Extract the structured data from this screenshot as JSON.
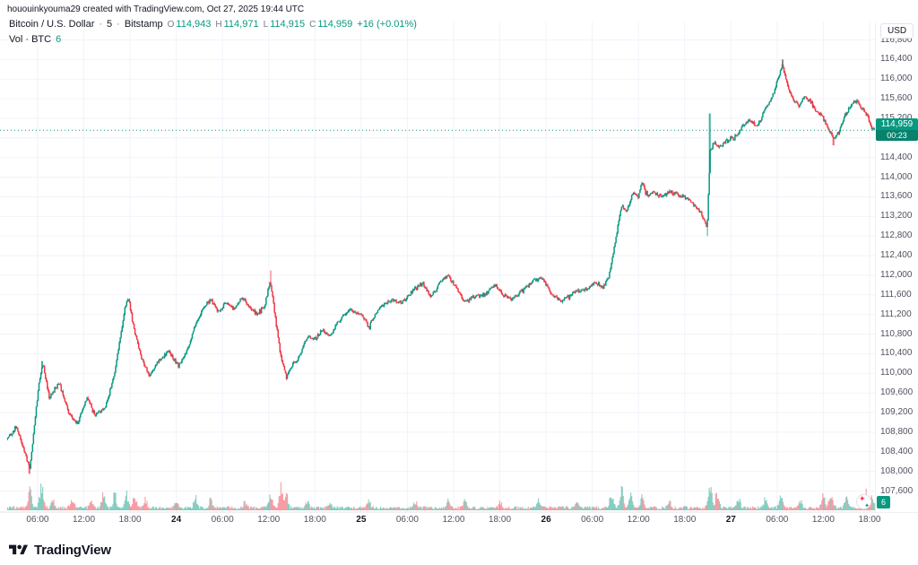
{
  "attribution": "hououinkyouma29 created with TradingView.com, Oct 27, 2025 19:44 UTC",
  "legend": {
    "symbol": "Bitcoin / U.S. Dollar",
    "separator": "·",
    "interval": "5",
    "exchange": "Bitstamp",
    "ohlc": [
      {
        "label": "O",
        "value": "114,943"
      },
      {
        "label": "H",
        "value": "114,971"
      },
      {
        "label": "L",
        "value": "114,915"
      },
      {
        "label": "C",
        "value": "114,959"
      }
    ],
    "change": "+16 (+0.01%)",
    "volume_label": "Vol · BTC",
    "volume_value": "6"
  },
  "price_axis": {
    "currency": "USD",
    "last_price": "114,959",
    "countdown": "00:23",
    "volume_badge": "6",
    "tick_values": [
      116800,
      116400,
      116000,
      115600,
      115200,
      114800,
      114400,
      114000,
      113600,
      113200,
      112800,
      112400,
      112000,
      111600,
      111200,
      110800,
      110400,
      110000,
      109600,
      109200,
      108800,
      108400,
      108000,
      107600
    ]
  },
  "time_axis": {
    "ticks": [
      {
        "h": 6,
        "label": "06:00",
        "day": false
      },
      {
        "h": 12,
        "label": "12:00",
        "day": false
      },
      {
        "h": 18,
        "label": "18:00",
        "day": false
      },
      {
        "h": 24,
        "label": "24",
        "day": true
      },
      {
        "h": 30,
        "label": "06:00",
        "day": false
      },
      {
        "h": 36,
        "label": "12:00",
        "day": false
      },
      {
        "h": 42,
        "label": "18:00",
        "day": false
      },
      {
        "h": 48,
        "label": "25",
        "day": true
      },
      {
        "h": 54,
        "label": "06:00",
        "day": false
      },
      {
        "h": 60,
        "label": "12:00",
        "day": false
      },
      {
        "h": 66,
        "label": "18:00",
        "day": false
      },
      {
        "h": 72,
        "label": "26",
        "day": true
      },
      {
        "h": 78,
        "label": "06:00",
        "day": false
      },
      {
        "h": 84,
        "label": "12:00",
        "day": false
      },
      {
        "h": 90,
        "label": "18:00",
        "day": false
      },
      {
        "h": 96,
        "label": "27",
        "day": true
      },
      {
        "h": 102,
        "label": "06:00",
        "day": false
      },
      {
        "h": 108,
        "label": "12:00",
        "day": false
      },
      {
        "h": 114,
        "label": "18:00",
        "day": false
      }
    ]
  },
  "footer": {
    "brand": "TradingView"
  },
  "colors": {
    "up": "#089981",
    "down": "#f23645",
    "grid": "#f0f3fa",
    "axis_border": "#e0e3eb",
    "axis_text": "#50535e",
    "text_dark": "#131722",
    "volume_up": "rgba(8,153,129,0.45)",
    "volume_down": "rgba(242,54,69,0.45)"
  },
  "chart_data": {
    "type": "candlestick",
    "title": "Bitcoin / U.S. Dollar · 5 · Bitstamp",
    "symbol": "BTCUSD",
    "exchange": "Bitstamp",
    "interval_minutes": 5,
    "ylabel": "USD",
    "grid": true,
    "ohlc_current": {
      "open": 114943,
      "high": 114971,
      "low": 114915,
      "close": 114959,
      "change": 16,
      "change_pct": 0.01
    },
    "volume_current_btc": 6,
    "price_range_axis": [
      107600,
      116800
    ],
    "hours_domain": [
      2.05,
      114.7
    ],
    "anchor_units": {
      "x": "hours since Oct 23 2025 00:00 UTC",
      "y": "USD"
    },
    "price_path_anchors": [
      [
        2.0,
        108650
      ],
      [
        3.3,
        108900
      ],
      [
        4.2,
        108450
      ],
      [
        5.0,
        108050
      ],
      [
        6.2,
        109850
      ],
      [
        6.7,
        110200
      ],
      [
        7.5,
        109500
      ],
      [
        8.8,
        109800
      ],
      [
        10.0,
        109200
      ],
      [
        11.2,
        108975
      ],
      [
        12.4,
        109500
      ],
      [
        13.5,
        109150
      ],
      [
        14.8,
        109300
      ],
      [
        16.0,
        110000
      ],
      [
        17.3,
        111300
      ],
      [
        17.8,
        111550
      ],
      [
        18.5,
        110900
      ],
      [
        19.5,
        110300
      ],
      [
        20.5,
        109950
      ],
      [
        21.5,
        110200
      ],
      [
        23.0,
        110450
      ],
      [
        24.3,
        110150
      ],
      [
        25.5,
        110500
      ],
      [
        26.5,
        111000
      ],
      [
        27.5,
        111350
      ],
      [
        28.5,
        111500
      ],
      [
        29.5,
        111250
      ],
      [
        30.5,
        111450
      ],
      [
        31.5,
        111300
      ],
      [
        32.5,
        111550
      ],
      [
        33.5,
        111350
      ],
      [
        34.5,
        111200
      ],
      [
        35.5,
        111400
      ],
      [
        36.2,
        111900
      ],
      [
        36.8,
        111200
      ],
      [
        37.5,
        110400
      ],
      [
        38.3,
        109950
      ],
      [
        39.0,
        110150
      ],
      [
        40.0,
        110350
      ],
      [
        41.0,
        110750
      ],
      [
        42.0,
        110700
      ],
      [
        43.0,
        110900
      ],
      [
        44.0,
        110750
      ],
      [
        45.0,
        111050
      ],
      [
        46.5,
        111300
      ],
      [
        48.0,
        111200
      ],
      [
        49.0,
        110950
      ],
      [
        50.5,
        111350
      ],
      [
        52.0,
        111500
      ],
      [
        53.5,
        111450
      ],
      [
        55.0,
        111750
      ],
      [
        56.0,
        111850
      ],
      [
        57.0,
        111550
      ],
      [
        58.5,
        111900
      ],
      [
        59.3,
        112000
      ],
      [
        60.5,
        111700
      ],
      [
        61.5,
        111450
      ],
      [
        62.5,
        111550
      ],
      [
        64.0,
        111600
      ],
      [
        65.5,
        111800
      ],
      [
        66.5,
        111600
      ],
      [
        67.5,
        111500
      ],
      [
        69.0,
        111700
      ],
      [
        70.5,
        111900
      ],
      [
        71.5,
        111950
      ],
      [
        72.5,
        111650
      ],
      [
        74.0,
        111450
      ],
      [
        75.5,
        111650
      ],
      [
        77.0,
        111700
      ],
      [
        78.5,
        111850
      ],
      [
        79.5,
        111750
      ],
      [
        80.2,
        112000
      ],
      [
        81.0,
        112700
      ],
      [
        81.8,
        113400
      ],
      [
        82.5,
        113300
      ],
      [
        83.3,
        113700
      ],
      [
        84.0,
        113600
      ],
      [
        84.5,
        113900
      ],
      [
        85.2,
        113600
      ],
      [
        86.0,
        113700
      ],
      [
        87.0,
        113600
      ],
      [
        88.0,
        113700
      ],
      [
        89.0,
        113650
      ],
      [
        90.0,
        113600
      ],
      [
        91.0,
        113450
      ],
      [
        92.0,
        113300
      ],
      [
        92.9,
        112950
      ],
      [
        93.3,
        114550
      ],
      [
        93.8,
        114700
      ],
      [
        94.5,
        114600
      ],
      [
        95.5,
        114750
      ],
      [
        96.5,
        114800
      ],
      [
        97.5,
        115050
      ],
      [
        98.5,
        115150
      ],
      [
        99.5,
        115050
      ],
      [
        100.5,
        115400
      ],
      [
        101.5,
        115700
      ],
      [
        102.3,
        116100
      ],
      [
        102.7,
        116300
      ],
      [
        103.3,
        115900
      ],
      [
        104.0,
        115600
      ],
      [
        104.8,
        115450
      ],
      [
        105.5,
        115650
      ],
      [
        106.3,
        115550
      ],
      [
        107.0,
        115350
      ],
      [
        107.8,
        115250
      ],
      [
        108.5,
        115050
      ],
      [
        109.2,
        114800
      ],
      [
        110.0,
        114900
      ],
      [
        110.8,
        115250
      ],
      [
        111.5,
        115450
      ],
      [
        112.3,
        115550
      ],
      [
        113.0,
        115400
      ],
      [
        113.7,
        115250
      ],
      [
        114.3,
        115000
      ],
      [
        114.7,
        114959
      ]
    ],
    "wick_spikes": [
      [
        4.95,
        107950,
        "low"
      ],
      [
        6.6,
        110250,
        "high"
      ],
      [
        36.25,
        112100,
        "high"
      ],
      [
        92.95,
        112800,
        "low"
      ],
      [
        93.25,
        115300,
        "high"
      ],
      [
        102.7,
        116400,
        "high"
      ],
      [
        109.3,
        114650,
        "low"
      ]
    ],
    "volume_spikes": [
      [
        5.0,
        0.5
      ],
      [
        6.5,
        0.95
      ],
      [
        8.0,
        0.2
      ],
      [
        10.5,
        0.3
      ],
      [
        13.0,
        0.3
      ],
      [
        14.5,
        0.45
      ],
      [
        16.0,
        0.4
      ],
      [
        17.5,
        0.5
      ],
      [
        18.6,
        0.35
      ],
      [
        20.0,
        0.3
      ],
      [
        24.0,
        0.2
      ],
      [
        26.5,
        0.3
      ],
      [
        28.5,
        0.25
      ],
      [
        33.0,
        0.2
      ],
      [
        36.3,
        0.5
      ],
      [
        37.6,
        0.6
      ],
      [
        38.3,
        0.4
      ],
      [
        41.0,
        0.2
      ],
      [
        44.0,
        0.18
      ],
      [
        49.0,
        0.22
      ],
      [
        55.0,
        0.18
      ],
      [
        59.3,
        0.25
      ],
      [
        61.5,
        0.2
      ],
      [
        66.0,
        0.18
      ],
      [
        71.0,
        0.2
      ],
      [
        76.0,
        0.15
      ],
      [
        80.5,
        0.45
      ],
      [
        81.8,
        0.55
      ],
      [
        83.0,
        0.35
      ],
      [
        84.5,
        0.3
      ],
      [
        88.0,
        0.2
      ],
      [
        93.3,
        0.8
      ],
      [
        94.2,
        0.45
      ],
      [
        97.0,
        0.25
      ],
      [
        100.5,
        0.3
      ],
      [
        102.5,
        0.4
      ],
      [
        105.0,
        0.25
      ],
      [
        108.0,
        0.35
      ],
      [
        109.0,
        0.5
      ],
      [
        111.0,
        0.3
      ],
      [
        113.5,
        0.45
      ],
      [
        114.3,
        0.35
      ]
    ]
  }
}
